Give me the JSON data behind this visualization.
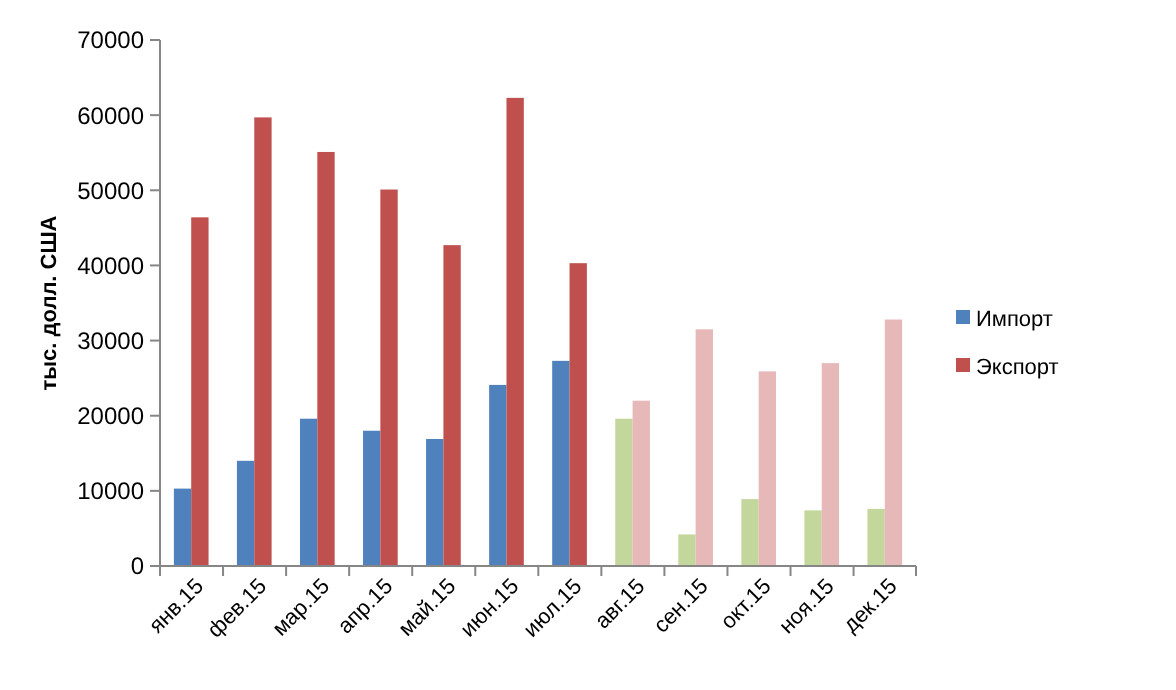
{
  "chart_data": {
    "type": "bar",
    "ylabel": "тыс. долл. США",
    "categories": [
      "янв.15",
      "фев.15",
      "мар.15",
      "апр.15",
      "май.15",
      "июн.15",
      "июл.15",
      "авг.15",
      "сен.15",
      "окт.15",
      "ноя.15",
      "дек.15"
    ],
    "series": [
      {
        "name": "Импорт",
        "color": "#4f81bd",
        "colors": [
          "#4f81bd",
          "#4f81bd",
          "#4f81bd",
          "#4f81bd",
          "#4f81bd",
          "#4f81bd",
          "#4f81bd",
          "#c3d69b",
          "#c3d69b",
          "#c3d69b",
          "#c3d69b",
          "#c3d69b"
        ],
        "values": [
          10300,
          14000,
          19600,
          18000,
          16900,
          24100,
          27300,
          19600,
          4200,
          8900,
          7400,
          7600
        ]
      },
      {
        "name": "Экспорт",
        "color": "#c0504d",
        "colors": [
          "#c0504d",
          "#c0504d",
          "#c0504d",
          "#c0504d",
          "#c0504d",
          "#c0504d",
          "#c0504d",
          "#e6b9b8",
          "#e6b9b8",
          "#e6b9b8",
          "#e6b9b8",
          "#e6b9b8"
        ],
        "values": [
          46400,
          59700,
          55100,
          50100,
          42700,
          62300,
          40300,
          22000,
          31500,
          25900,
          27000,
          32800
        ]
      }
    ],
    "ylim": [
      0,
      70000
    ],
    "yticks": [
      0,
      10000,
      20000,
      30000,
      40000,
      50000,
      60000,
      70000
    ],
    "grid": false,
    "legend": "right"
  }
}
